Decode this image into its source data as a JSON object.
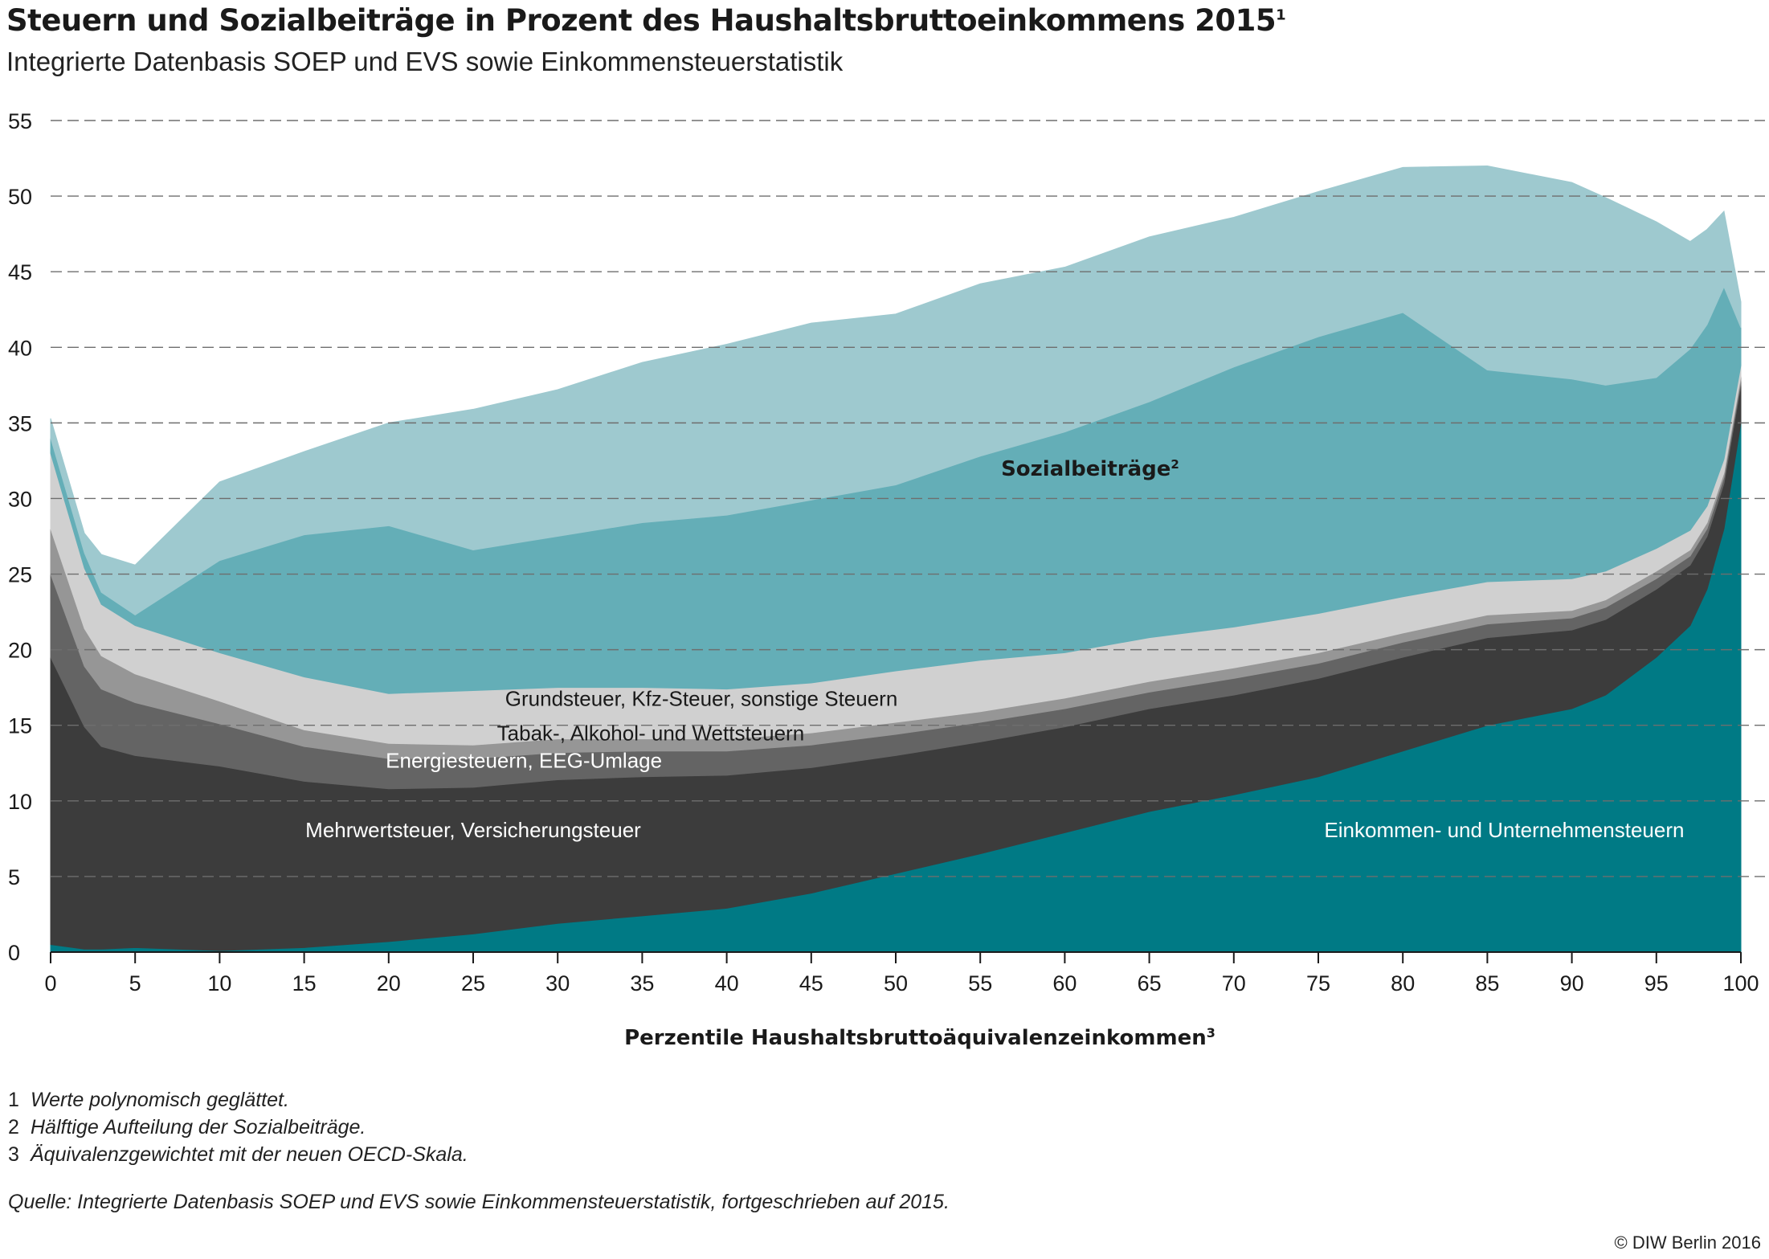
{
  "header": {
    "title": "Steuern und Sozialbeiträge in Prozent des Haushaltsbruttoeinkommens 2015",
    "title_sup": "1",
    "subtitle": "Integrierte Datenbasis SOEP und EVS sowie Einkommensteuerstatistik"
  },
  "footnotes": [
    {
      "num": "1",
      "text": "Werte polynomisch geglättet."
    },
    {
      "num": "2",
      "text": "Hälftige Aufteilung der Sozialbeiträge."
    },
    {
      "num": "3",
      "text": "Äquivalenzgewichtet mit der neuen OECD-Skala."
    }
  ],
  "source": "Quelle: Integrierte Datenbasis SOEP und EVS sowie Einkommensteuerstatistik, fortgeschrieben auf 2015.",
  "copyright": "© DIW Berlin 2016",
  "chart_data": {
    "type": "area",
    "stacked": true,
    "xlabel": "Perzentile Haushaltsbruttoäquivalenzeinkommen",
    "xlabel_sup": "3",
    "ylabel": "",
    "xlim": [
      0,
      100
    ],
    "ylim": [
      0,
      55
    ],
    "x_ticks": [
      0,
      5,
      10,
      15,
      20,
      25,
      30,
      35,
      40,
      45,
      50,
      55,
      60,
      65,
      70,
      75,
      80,
      85,
      90,
      95,
      100
    ],
    "y_ticks": [
      0,
      5,
      10,
      15,
      20,
      25,
      30,
      35,
      40,
      45,
      50,
      55
    ],
    "grid": "horizontal dashed",
    "x": [
      0,
      2,
      3,
      5,
      10,
      15,
      20,
      25,
      30,
      35,
      40,
      45,
      50,
      55,
      60,
      65,
      70,
      75,
      80,
      85,
      90,
      92,
      95,
      97,
      98,
      99,
      100
    ],
    "series": [
      {
        "name": "Einkommen- und Unternehmensteuern",
        "color": "#007a85",
        "values": [
          0.5,
          0.2,
          0.2,
          0.3,
          0.1,
          0.3,
          0.7,
          1.2,
          1.9,
          2.4,
          2.9,
          3.9,
          5.2,
          6.5,
          7.9,
          9.3,
          10.4,
          11.6,
          13.3,
          15.0,
          16.1,
          17.0,
          19.5,
          21.6,
          24.0,
          28.0,
          35.0
        ]
      },
      {
        "name": "Mehrwertsteuer, Versicherungsteuer",
        "color": "#3c3c3c",
        "values": [
          19.0,
          14.7,
          13.4,
          12.7,
          12.2,
          11.0,
          10.1,
          9.7,
          9.5,
          9.2,
          8.8,
          8.3,
          7.8,
          7.4,
          7.0,
          6.8,
          6.6,
          6.5,
          6.2,
          5.8,
          5.2,
          5.0,
          4.5,
          4.0,
          3.5,
          3.0,
          2.5
        ]
      },
      {
        "name": "Energiesteuern, EEG-Umlage",
        "color": "#646464",
        "values": [
          5.5,
          4.0,
          3.8,
          3.5,
          2.8,
          2.3,
          2.0,
          1.9,
          1.8,
          1.7,
          1.6,
          1.5,
          1.4,
          1.3,
          1.2,
          1.1,
          1.1,
          1.0,
          1.0,
          0.9,
          0.8,
          0.8,
          0.7,
          0.6,
          0.5,
          0.4,
          0.3
        ]
      },
      {
        "name": "Tabak-, Alkohol- und Wettsteuern",
        "color": "#969696",
        "values": [
          3.0,
          2.5,
          2.2,
          1.9,
          1.5,
          1.1,
          1.0,
          0.9,
          0.9,
          0.8,
          0.8,
          0.8,
          0.8,
          0.7,
          0.7,
          0.7,
          0.7,
          0.7,
          0.6,
          0.6,
          0.5,
          0.5,
          0.5,
          0.4,
          0.4,
          0.3,
          0.3
        ]
      },
      {
        "name": "Grundsteuer, Kfz-Steuer, sonstige Steuern",
        "color": "#d0d0d0",
        "values": [
          5.0,
          4.0,
          3.4,
          3.2,
          3.2,
          3.5,
          3.3,
          3.6,
          3.4,
          3.4,
          3.3,
          3.3,
          3.4,
          3.4,
          3.0,
          2.9,
          2.7,
          2.6,
          2.4,
          2.2,
          2.1,
          1.9,
          1.5,
          1.3,
          1.1,
          0.9,
          0.7
        ]
      },
      {
        "name": "Sozialbeiträge",
        "name_sup": "2",
        "color": "#64aeb7",
        "values": [
          1.0,
          1.0,
          0.8,
          0.7,
          6.1,
          9.4,
          11.1,
          9.3,
          10.0,
          10.9,
          11.5,
          12.1,
          12.3,
          13.5,
          14.6,
          15.6,
          17.2,
          18.3,
          18.8,
          14.0,
          13.2,
          12.3,
          11.3,
          12.0,
          12.0,
          11.4,
          2.5
        ]
      },
      {
        "name": "Sozialbeiträge",
        "color": "#9ec9cf",
        "values": [
          1.3,
          1.3,
          2.5,
          3.3,
          5.2,
          5.5,
          6.8,
          9.3,
          9.7,
          10.6,
          11.3,
          11.7,
          11.3,
          11.4,
          10.9,
          10.9,
          9.9,
          9.6,
          9.6,
          13.5,
          13.0,
          12.4,
          10.3,
          7.1,
          6.3,
          5.0,
          1.7
        ]
      }
    ],
    "labels": [
      {
        "text": "Sozialbeiträge",
        "sup": "2",
        "x": 61.5,
        "y": 31.5,
        "bold": true,
        "color": "#1a1a1a"
      },
      {
        "text": "Grundsteuer, Kfz-Steuer, sonstige Steuern",
        "x": 38.5,
        "y": 16.3,
        "color": "#1a1a1a"
      },
      {
        "text": "Tabak-, Alkohol- und Wettsteuern",
        "x": 35.5,
        "y": 14.0,
        "color": "#1a1a1a"
      },
      {
        "text": "Energiesteuern, EEG-Umlage",
        "x": 28.0,
        "y": 12.2,
        "color": "#ffffff"
      },
      {
        "text": "Mehrwertsteuer, Versicherungsteuer",
        "x": 25.0,
        "y": 7.6,
        "color": "#ffffff"
      },
      {
        "text": "Einkommen- und Unternehmensteuern",
        "x": 86.0,
        "y": 7.6,
        "color": "#ffffff"
      }
    ]
  }
}
